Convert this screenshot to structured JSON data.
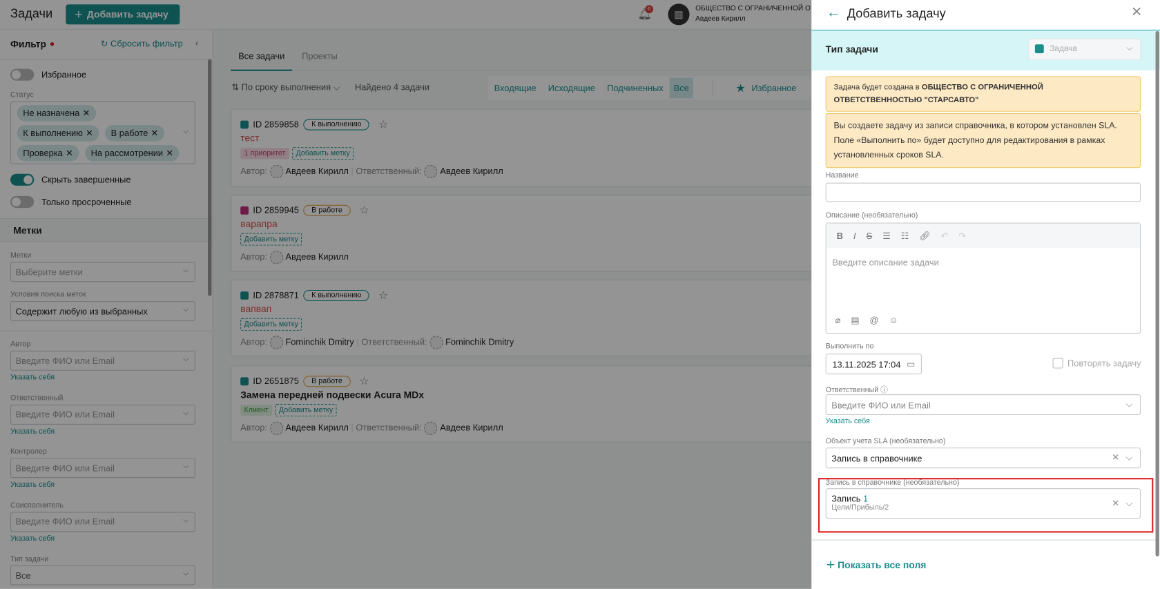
{
  "header": {
    "title": "Задачи",
    "add_task": "Добавить задачу",
    "notifications_count": "6",
    "company": "ОБЩЕСТВО С ОГРАНИЧЕННОЙ ОТВЕ",
    "user": "Авдеев Кирилл"
  },
  "filter": {
    "title": "Фильтр",
    "reset": "Сбросить фильтр",
    "favorites": "Избранное",
    "status_label": "Статус",
    "statuses": [
      "Не назначена",
      "К выполнению",
      "В работе",
      "Проверка",
      "На рассмотрении"
    ],
    "hide_completed": "Скрыть завершенные",
    "hide_completed_on": true,
    "only_overdue": "Только просроченные",
    "tags_section": "Метки",
    "tags_label": "Метки",
    "tags_placeholder": "Выберите метки",
    "tag_search_label": "Условия поиска меток",
    "tag_search_value": "Содержит любую из выбранных",
    "person_fields": [
      {
        "label": "Автор",
        "placeholder": "Введите ФИО или Email",
        "link": "Указать себя"
      },
      {
        "label": "Ответственный",
        "placeholder": "Введите ФИО или Email",
        "link": "Указать себя"
      },
      {
        "label": "Контролер",
        "placeholder": "Введите ФИО или Email",
        "link": "Указать себя"
      },
      {
        "label": "Соисполнитель",
        "placeholder": "Введите ФИО или Email",
        "link": "Указать себя"
      }
    ],
    "task_type_label": "Тип задачи",
    "task_type_value": "Все"
  },
  "main": {
    "tabs": [
      "Все задачи",
      "Проекты"
    ],
    "sort": "По сроку выполнения",
    "found": "Найдено 4 задачи",
    "segments": [
      "Входящие",
      "Исходящие",
      "Подчиненных",
      "Все"
    ],
    "favorites": "Избранное",
    "tasks": [
      {
        "id": "ID 2859858",
        "status": "К выполнению",
        "title": "тест",
        "tags": [
          "1 приоритет"
        ],
        "add_tag": "Добавить метку",
        "author_label": "Автор:",
        "author": "Авдеев Кирилл",
        "resp_label": "Ответственный:",
        "resp": "Авдеев Кирилл"
      },
      {
        "id": "ID 2859945",
        "status": "В работе",
        "title": "варапра",
        "tags": [],
        "add_tag": "Добавить метку",
        "author_label": "Автор:",
        "author": "Авдеев Кирилл"
      },
      {
        "id": "ID 2878871",
        "status": "К выполнению",
        "title": "вапвап",
        "tags": [],
        "add_tag": "Добавить метку",
        "author_label": "Автор:",
        "author": "Fominchik Dmitry",
        "resp_label": "Ответственный:",
        "resp": "Fominchik Dmitry"
      },
      {
        "id": "ID 2651875",
        "status": "В работе",
        "title": "Замена передней подвески Acura MDx",
        "tags": [
          "Клиент"
        ],
        "add_tag": "Добавить метку",
        "author_label": "Автор:",
        "author": "Авдеев Кирилл",
        "resp_label": "Ответственный:",
        "resp": "Авдеев Кирилл"
      }
    ]
  },
  "panel": {
    "title": "Добавить задачу",
    "type_label": "Тип задачи",
    "type_value": "Задача",
    "notice1_prefix": "Задача будет создана в ",
    "notice1_company": "ОБЩЕСТВО С ОГРАНИЧЕННОЙ ОТВЕТСТВЕННОСТЬЮ \"СТАРСАВТО\"",
    "notice2": "Вы создаете задачу из записи справочника, в котором установлен SLA. Поле «Выполнить по» будет доступно для редактирования в рамках установленных сроков SLA.",
    "name_label": "Название",
    "name_value": "",
    "desc_label": "Описание (необязательно)",
    "desc_placeholder": "Введите описание задачи",
    "due_label": "Выполнить по",
    "due_value": "13.11.2025 17:04",
    "repeat": "Повторять задачу",
    "resp_label": "Ответственный",
    "resp_placeholder": "Введите ФИО или Email",
    "resp_link": "Указать себя",
    "sla_label": "Объект учета SLA (необязательно)",
    "sla_value": "Запись в справочнике",
    "record_label": "Запись в справочнике (необязательно)",
    "record_name": "Запись",
    "record_num": "1",
    "record_path": "Цели/Прибыль/2",
    "show_all": "Показать все поля"
  },
  "colors": {
    "accent": "#1b8d8d",
    "highlight": "#e02020",
    "notice_bg": "#fde9c4",
    "type_bar": "#d5f5f6"
  }
}
